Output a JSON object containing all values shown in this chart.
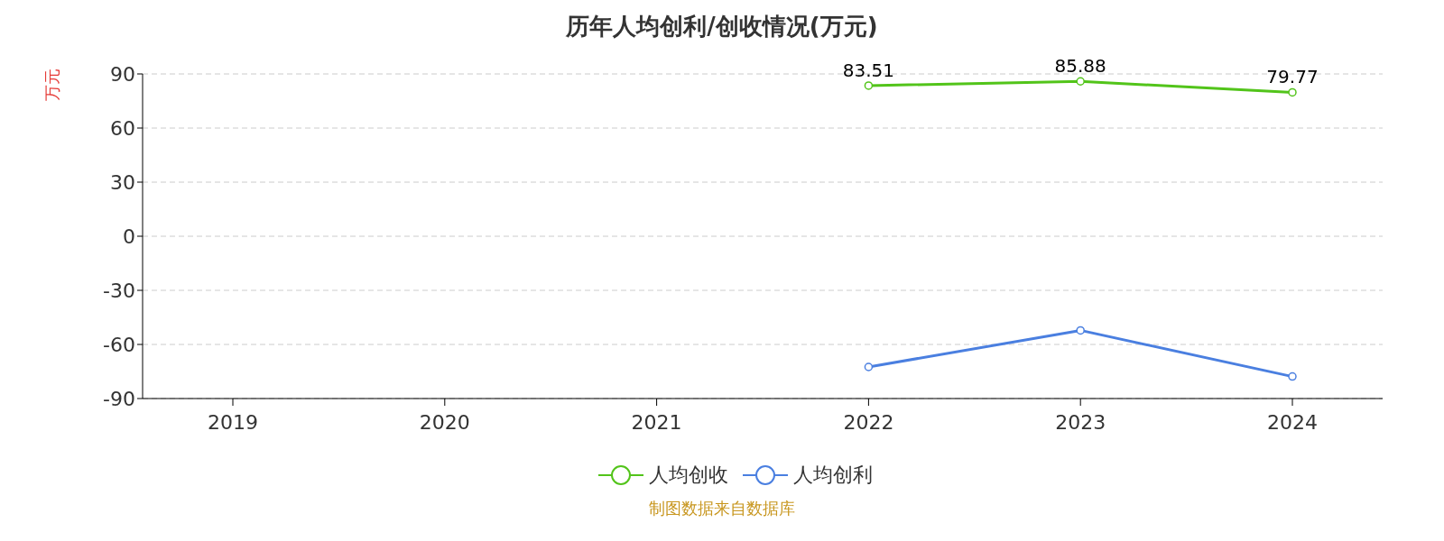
{
  "chart_data": {
    "type": "line",
    "title": "历年人均创利/创收情况(万元)",
    "ylabel": "万元",
    "categories": [
      "2019",
      "2020",
      "2021",
      "2022",
      "2023",
      "2024"
    ],
    "series": [
      {
        "name": "人均创收",
        "color": "#52c41a",
        "values": [
          null,
          null,
          null,
          83.51,
          85.88,
          79.77
        ],
        "value_labels": [
          null,
          null,
          null,
          "83.51",
          "85.88",
          "79.77"
        ]
      },
      {
        "name": "人均创利",
        "color": "#4a7fe0",
        "values": [
          null,
          null,
          null,
          -72.5,
          -52.2,
          -77.8
        ]
      }
    ],
    "ylim": [
      -90,
      90
    ],
    "yticks": [
      -90,
      -60,
      -30,
      0,
      30,
      60,
      90
    ],
    "grid": "y",
    "legend": "bottom",
    "marker": "circle",
    "line_style": "solid",
    "annotations": [
      "制图数据来自数据库"
    ]
  }
}
